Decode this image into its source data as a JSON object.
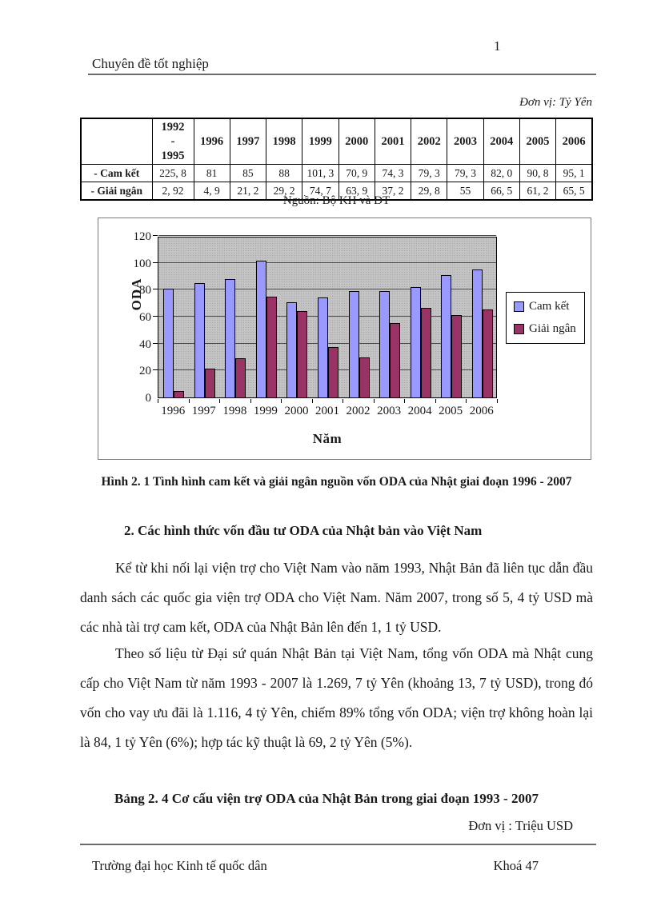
{
  "page": {
    "number": "1"
  },
  "header": {
    "title": "Chuyên đề tốt nghiệp"
  },
  "unit_note_1": "Đơn vị: Tỷ Yên",
  "table": {
    "col_headers": [
      "",
      "1992\n-\n1995",
      "1996",
      "1997",
      "1998",
      "1999",
      "2000",
      "2001",
      "2002",
      "2003",
      "2004",
      "2005",
      "2006"
    ],
    "rows": [
      {
        "label": "- Cam kết",
        "values": [
          "225, 8",
          "81",
          "85",
          "88",
          "101, 3",
          "70, 9",
          "74, 3",
          "79, 3",
          "79, 3",
          "82, 0",
          "90, 8",
          "95, 1"
        ]
      },
      {
        "label": "- Giải ngân",
        "values": [
          "2, 92",
          "4, 9",
          "21, 2",
          "29, 2",
          "74, 7",
          "63, 9",
          "37, 2",
          "29, 8",
          "55",
          "66, 5",
          "61, 2",
          "65, 5"
        ]
      }
    ],
    "source": "Nguồn: Bộ KH và ĐT"
  },
  "chart_data": {
    "type": "bar",
    "categories": [
      "1996",
      "1997",
      "1998",
      "1999",
      "2000",
      "2001",
      "2002",
      "2003",
      "2004",
      "2005",
      "2006"
    ],
    "series": [
      {
        "name": "Cam kết",
        "color": "#9999ff",
        "values": [
          81,
          85,
          88,
          101.3,
          70.9,
          74.3,
          79.3,
          79.3,
          82.0,
          90.8,
          95.1
        ]
      },
      {
        "name": "Giải ngân",
        "color": "#993366",
        "values": [
          4.9,
          21.2,
          29.2,
          74.7,
          63.9,
          37.2,
          29.8,
          55,
          66.5,
          61.2,
          65.5
        ]
      }
    ],
    "title": "",
    "xlabel": "Năm",
    "ylabel": "ODA",
    "ylim": [
      0,
      120
    ],
    "ytick_step": 20,
    "grid": true,
    "legend_position": "right",
    "plot_background": "#c3c3c3"
  },
  "figure_caption": "Hình 2. 1 Tình hình cam kết và giải ngân nguồn vốn ODA của Nhật giai đoạn 1996 - 2007",
  "section_heading": "2. Các hình thức vốn đầu tư ODA của Nhật bản vào Việt Nam",
  "paragraphs": [
    "Kể từ khi nối lại viện trợ cho Việt Nam vào năm 1993, Nhật Bản đã liên tục dẫn đầu danh sách các quốc gia viện trợ ODA cho Việt Nam. Năm 2007, trong số 5, 4 tỷ USD mà các nhà tài trợ cam kết, ODA của Nhật Bản lên đến 1, 1 tỷ USD.",
    "Theo số liệu từ Đại sứ quán Nhật Bản tại Việt Nam, tổng vốn ODA mà Nhật cung cấp cho Việt Nam từ năm 1993 - 2007 là 1.269, 7 tỷ Yên (khoảng 13, 7 tỷ USD), trong đó vốn cho vay ưu đãi là 1.116, 4 tỷ Yên, chiếm 89% tổng vốn ODA; viện trợ không hoàn lại là 84, 1 tỷ Yên (6%); hợp tác kỹ thuật là 69, 2 tỷ Yên (5%)."
  ],
  "table_caption": "Bảng 2. 4 Cơ cấu viện trợ ODA của Nhật Bản trong giai đoạn 1993 - 2007",
  "unit_note_2": "Đơn vị : Triệu USD",
  "footer": {
    "left": "Trường đại học Kinh tế quốc dân",
    "right": "Khoá 47"
  }
}
